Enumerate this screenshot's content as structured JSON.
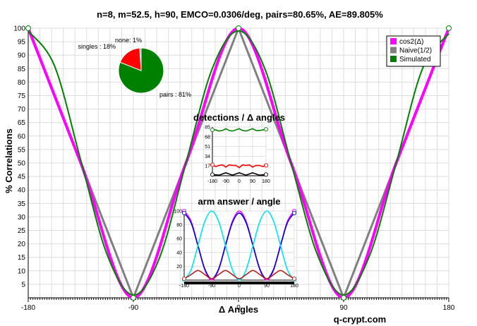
{
  "chart_data": {
    "type": "line",
    "title": "n=8, m=52.5, h=90, EMCO=0.0306/deg, pairs=80.65%, AE=89.805%",
    "xlabel": "Δ Angles",
    "ylabel": "% Correlations",
    "xlim": [
      -180,
      180
    ],
    "ylim": [
      0,
      100
    ],
    "x_ticks": [
      -180,
      -90,
      0,
      90,
      180
    ],
    "y_ticks": [
      5,
      10,
      15,
      20,
      25,
      30,
      35,
      40,
      45,
      50,
      55,
      60,
      65,
      70,
      75,
      80,
      85,
      90,
      95,
      100
    ],
    "grid": true,
    "legend_position": "top-right",
    "colors": {
      "cos2": "#ff00ff",
      "naive": "#808080",
      "simulated": "#008000"
    },
    "series": [
      {
        "name": "cos2(Δ)",
        "x": [
          -180,
          -135,
          -90,
          -45,
          0,
          45,
          90,
          135,
          180
        ],
        "values": [
          100,
          50,
          0,
          50,
          100,
          50,
          0,
          50,
          100
        ]
      },
      {
        "name": "Naive(1/2)",
        "x": [
          -180,
          -90,
          0,
          90,
          180
        ],
        "values": [
          100,
          0,
          100,
          0,
          100
        ]
      },
      {
        "name": "Simulated",
        "x": [
          -180,
          -157.5,
          -135,
          -112.5,
          -90,
          -67.5,
          -45,
          -22.5,
          0,
          22.5,
          45,
          67.5,
          90,
          112.5,
          135,
          157.5,
          180
        ],
        "values": [
          99,
          86,
          51,
          16,
          1,
          15,
          50,
          85,
          99,
          85,
          50,
          16,
          1,
          16,
          50,
          85,
          98
        ]
      }
    ],
    "watermark": "q-crypt.com",
    "pie": {
      "slices": [
        {
          "label": "pairs : 81%",
          "value": 81,
          "color": "#008000"
        },
        {
          "label": "singles : 18%",
          "value": 18,
          "color": "#ff0000"
        },
        {
          "label": "none: 1%",
          "value": 1,
          "color": "#808080"
        }
      ]
    },
    "inset_detections": {
      "title": "detections / Δ angles",
      "x_ticks": [
        -180,
        -90,
        0,
        90,
        180
      ],
      "y_ticks": [
        17,
        34,
        51,
        68,
        85
      ],
      "ylim": [
        0,
        85
      ],
      "series": [
        {
          "color": "#008000",
          "x": [
            -180,
            -157.5,
            -135,
            -112.5,
            -90,
            -67.5,
            -45,
            -22.5,
            0,
            22.5,
            45,
            67.5,
            90,
            112.5,
            135,
            157.5,
            180
          ],
          "values": [
            80,
            80,
            78,
            79,
            82,
            79,
            78,
            80,
            82,
            79,
            78,
            80,
            82,
            79,
            79,
            80,
            81
          ]
        },
        {
          "color": "#ff0000",
          "x": [
            -180,
            -157.5,
            -135,
            -112.5,
            -90,
            -67.5,
            -45,
            -22.5,
            0,
            22.5,
            45,
            67.5,
            90,
            112.5,
            135,
            157.5,
            180
          ],
          "values": [
            19,
            16,
            18,
            19,
            15,
            19,
            18,
            18,
            14,
            19,
            18,
            19,
            15,
            18,
            18,
            16,
            18
          ]
        },
        {
          "color": "#000000",
          "x": [
            -180,
            -135,
            -90,
            -45,
            0,
            45,
            90,
            135,
            180
          ],
          "values": [
            2,
            1,
            5,
            1,
            5,
            1,
            5,
            1,
            2
          ]
        }
      ]
    },
    "inset_arm": {
      "title": "arm answer / angle",
      "x_ticks": [
        -180,
        -90,
        0,
        90,
        180
      ],
      "y_ticks": [
        20,
        40,
        60,
        80,
        100
      ],
      "ylim": [
        0,
        100
      ],
      "series": [
        {
          "color": "#ff00ff",
          "x": [
            -180,
            -157.5,
            -135,
            -112.5,
            -90,
            -67.5,
            -45,
            -22.5,
            0,
            22.5,
            45,
            67.5,
            90,
            112.5,
            135,
            157.5,
            180
          ],
          "values": [
            100,
            85,
            50,
            15,
            0,
            15,
            50,
            85,
            100,
            85,
            50,
            15,
            0,
            15,
            50,
            85,
            100
          ]
        },
        {
          "color": "#0000cd",
          "x": [
            -180,
            -157.5,
            -135,
            -112.5,
            -90,
            -67.5,
            -45,
            -22.5,
            0,
            22.5,
            45,
            67.5,
            90,
            112.5,
            135,
            157.5,
            180
          ],
          "values": [
            97,
            83,
            50,
            16,
            2,
            16,
            50,
            83,
            97,
            83,
            50,
            16,
            2,
            16,
            50,
            83,
            97
          ]
        },
        {
          "color": "#00e5ee",
          "x": [
            -180,
            -157.5,
            -135,
            -112.5,
            -90,
            -67.5,
            -45,
            -22.5,
            0,
            22.5,
            45,
            67.5,
            90,
            112.5,
            135,
            157.5,
            180
          ],
          "values": [
            0,
            15,
            50,
            85,
            100,
            85,
            50,
            15,
            0,
            15,
            50,
            85,
            100,
            85,
            50,
            15,
            0
          ]
        },
        {
          "color": "#b22222",
          "x": [
            -180,
            -157.5,
            -135,
            -112.5,
            -90,
            -67.5,
            -45,
            -22.5,
            0,
            22.5,
            45,
            67.5,
            90,
            112.5,
            135,
            157.5,
            180
          ],
          "values": [
            2,
            8,
            14,
            8,
            2,
            8,
            14,
            8,
            2,
            8,
            14,
            8,
            2,
            8,
            14,
            8,
            2
          ]
        }
      ]
    }
  }
}
